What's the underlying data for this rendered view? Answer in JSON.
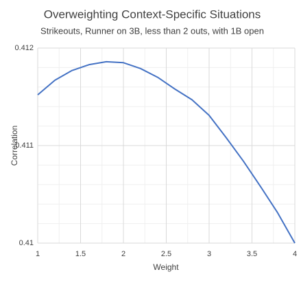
{
  "chart_data": {
    "type": "line",
    "title": "Overweighting Context-Specific Situations",
    "subtitle": "Strikeouts,  Runner on 3B, less than 2 outs,  with 1B open",
    "x_label": "Weight",
    "y_label": "Correlation",
    "x": [
      1.0,
      1.2,
      1.4,
      1.6,
      1.8,
      2.0,
      2.2,
      2.4,
      2.6,
      2.8,
      3.0,
      3.2,
      3.4,
      3.6,
      3.8,
      4.0
    ],
    "series": [
      {
        "name": "Correlation",
        "color": "#4472c4",
        "values": [
          0.41152,
          0.41167,
          0.41177,
          0.41183,
          0.41186,
          0.41185,
          0.41179,
          0.4117,
          0.41158,
          0.41147,
          0.41131,
          0.41108,
          0.41084,
          0.41058,
          0.41031,
          0.41
        ]
      }
    ],
    "xlim": [
      1,
      4
    ],
    "xticks": [
      1,
      1.5,
      2,
      2.5,
      3,
      3.5,
      4
    ],
    "ylim": [
      0.41,
      0.412
    ],
    "yticks": [
      0.41,
      0.411,
      0.412
    ],
    "grid": true,
    "minor_grid": true
  }
}
